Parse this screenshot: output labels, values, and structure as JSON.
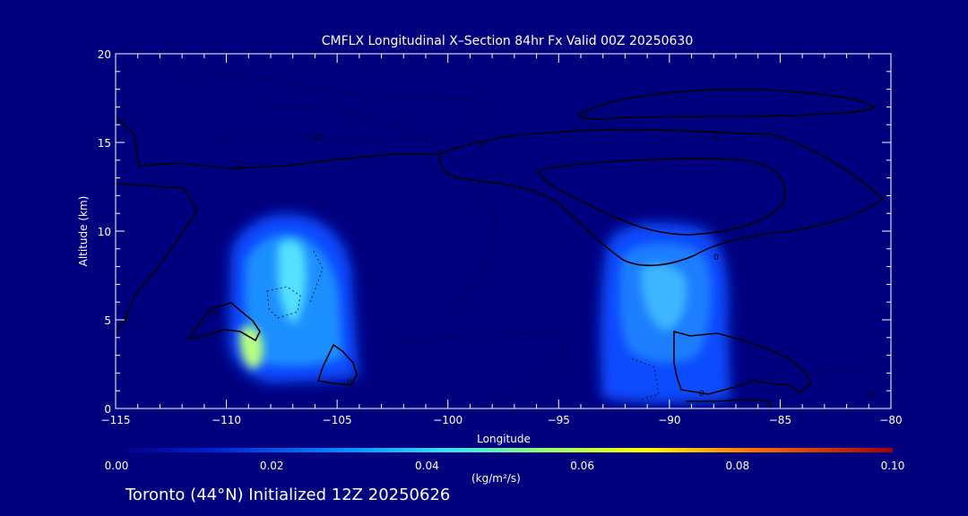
{
  "chart_data": {
    "type": "heatmap",
    "title": "CMFLX Longitudinal X–Section 84hr  Fx Valid 00Z 20250630",
    "xlabel": "Longitude",
    "ylabel": "Altitude (km)",
    "xlim": [
      -115,
      -80
    ],
    "ylim": [
      0,
      20
    ],
    "x_ticks": [
      -115,
      -110,
      -105,
      -100,
      -95,
      -90,
      -85,
      -80
    ],
    "y_ticks": [
      0,
      5,
      10,
      15,
      20
    ],
    "colorbar": {
      "min": 0.0,
      "max": 0.1,
      "ticks": [
        "0.00",
        "0.02",
        "0.04",
        "0.06",
        "0.08",
        "0.10"
      ],
      "units": "(kg/m²/s)",
      "colors": [
        "#00007f",
        "#0050ff",
        "#20c8ff",
        "#90ff70",
        "#ffff00",
        "#ff6000",
        "#aa0000"
      ]
    },
    "cells": [
      {
        "lon": -109.5,
        "alt_min": 2.5,
        "alt_max": 10.5,
        "max_value": 0.04
      },
      {
        "lon": -90.5,
        "alt_min": 0.3,
        "alt_max": 10.0,
        "max_value": 0.03
      }
    ],
    "contour_labels": [
      "-10",
      "0",
      "0",
      "0",
      "0",
      "0",
      "0",
      "0",
      "0",
      "0",
      "0"
    ],
    "footer": "Toronto (44°N) Initialized 12Z 20250626"
  }
}
